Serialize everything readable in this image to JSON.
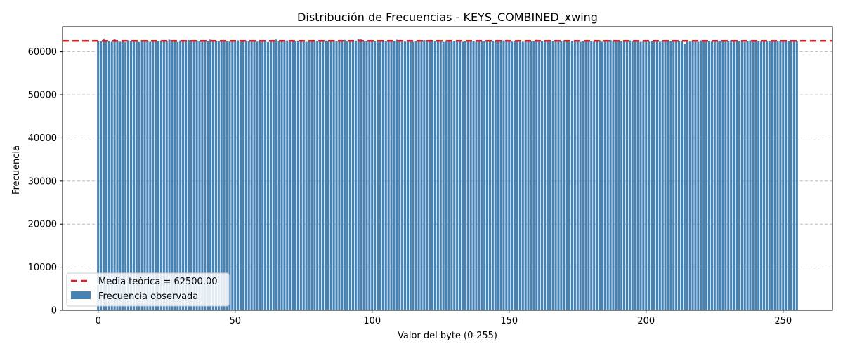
{
  "chart_data": {
    "type": "bar",
    "title": "Distribución de Frecuencias - KEYS_COMBINED_xwing",
    "xlabel": "Valor del byte (0-255)",
    "ylabel": "Frecuencia",
    "xlim": [
      -13,
      268
    ],
    "ylim": [
      0,
      65800
    ],
    "xticks": [
      0,
      50,
      100,
      150,
      200,
      250
    ],
    "yticks": [
      0,
      10000,
      20000,
      30000,
      40000,
      50000,
      60000
    ],
    "grid": "y-dashed",
    "legend_position": "lower-left",
    "colors": {
      "bar": "#4682b4",
      "mean_line": "#e41a1c",
      "grid": "#b0b0b0"
    },
    "mean_line": {
      "value": 62500,
      "label": "Media teórica = 62500.00"
    },
    "series": [
      {
        "name": "Frecuencia observada",
        "x_start": 0,
        "values": [
          62480,
          62370,
          63050,
          62410,
          62520,
          62290,
          62860,
          62450,
          62310,
          62540,
          62190,
          62620,
          62470,
          62350,
          62580,
          62240,
          62690,
          62430,
          62510,
          62280,
          62610,
          62390,
          62470,
          62550,
          62320,
          62460,
          62780,
          62400,
          62530,
          62270,
          62600,
          62440,
          62380,
          62720,
          62460,
          62290,
          62570,
          62410,
          62650,
          62330,
          62490,
          62800,
          62370,
          62520,
          62440,
          62300,
          62590,
          62460,
          62350,
          62510,
          62420,
          62630,
          62290,
          62480,
          62560,
          62380,
          62450,
          62700,
          62330,
          62500,
          62410,
          62570,
          62260,
          62460,
          62390,
          62820,
          62440,
          62350,
          62520,
          62600,
          62300,
          62470,
          62410,
          62550,
          62380,
          62490,
          62280,
          62620,
          62430,
          62360,
          62540,
          62470,
          62310,
          62580,
          62450,
          62390,
          62660,
          62420,
          62350,
          62510,
          62740,
          62400,
          62460,
          62300,
          62560,
          62920,
          62830,
          62410,
          62480,
          62350,
          62690,
          62430,
          62270,
          62540,
          62380,
          62460,
          62610,
          62320,
          62490,
          62780,
          62400,
          62530,
          62350,
          62440,
          62590,
          62290,
          62470,
          62360,
          62520,
          62680,
          62410,
          62300,
          62560,
          62430,
          62380,
          62500,
          62260,
          62610,
          62450,
          62340,
          62530,
          62400,
          62690,
          62310,
          62470,
          62550,
          62380,
          62440,
          62290,
          62600,
          62420,
          62510,
          62360,
          62480,
          62570,
          62310,
          62440,
          62390,
          62620,
          62730,
          62450,
          62340,
          62500,
          62410,
          62680,
          62300,
          62470,
          62560,
          62390,
          62450,
          62760,
          62340,
          62520,
          62430,
          62580,
          62290,
          62480,
          62400,
          62540,
          62370,
          62610,
          62460,
          62320,
          62500,
          62440,
          62630,
          62280,
          62470,
          62390,
          62550,
          62430,
          62350,
          62510,
          62590,
          62300,
          62460,
          62420,
          62690,
          62340,
          62480,
          62560,
          62400,
          62450,
          62310,
          62620,
          62370,
          62500,
          62440,
          62280,
          62570,
          62420,
          62360,
          62530,
          62450,
          62660,
          62320,
          62480,
          62410,
          62720,
          62390,
          62540,
          62300,
          62470,
          62430,
          61830,
          62590,
          62340,
          62450,
          62510,
          62280,
          62620,
          62380,
          62700,
          62460,
          62330,
          62520,
          62410,
          62570,
          62360,
          62480,
          62440,
          62650,
          62300,
          62460,
          62390,
          62530,
          62250,
          62480,
          62600,
          62370,
          62450,
          62520,
          62330,
          62590,
          62410,
          62460,
          62700,
          62380,
          62500,
          62440,
          62310,
          62560,
          62420,
          62480,
          62370,
          62330
        ]
      }
    ]
  }
}
